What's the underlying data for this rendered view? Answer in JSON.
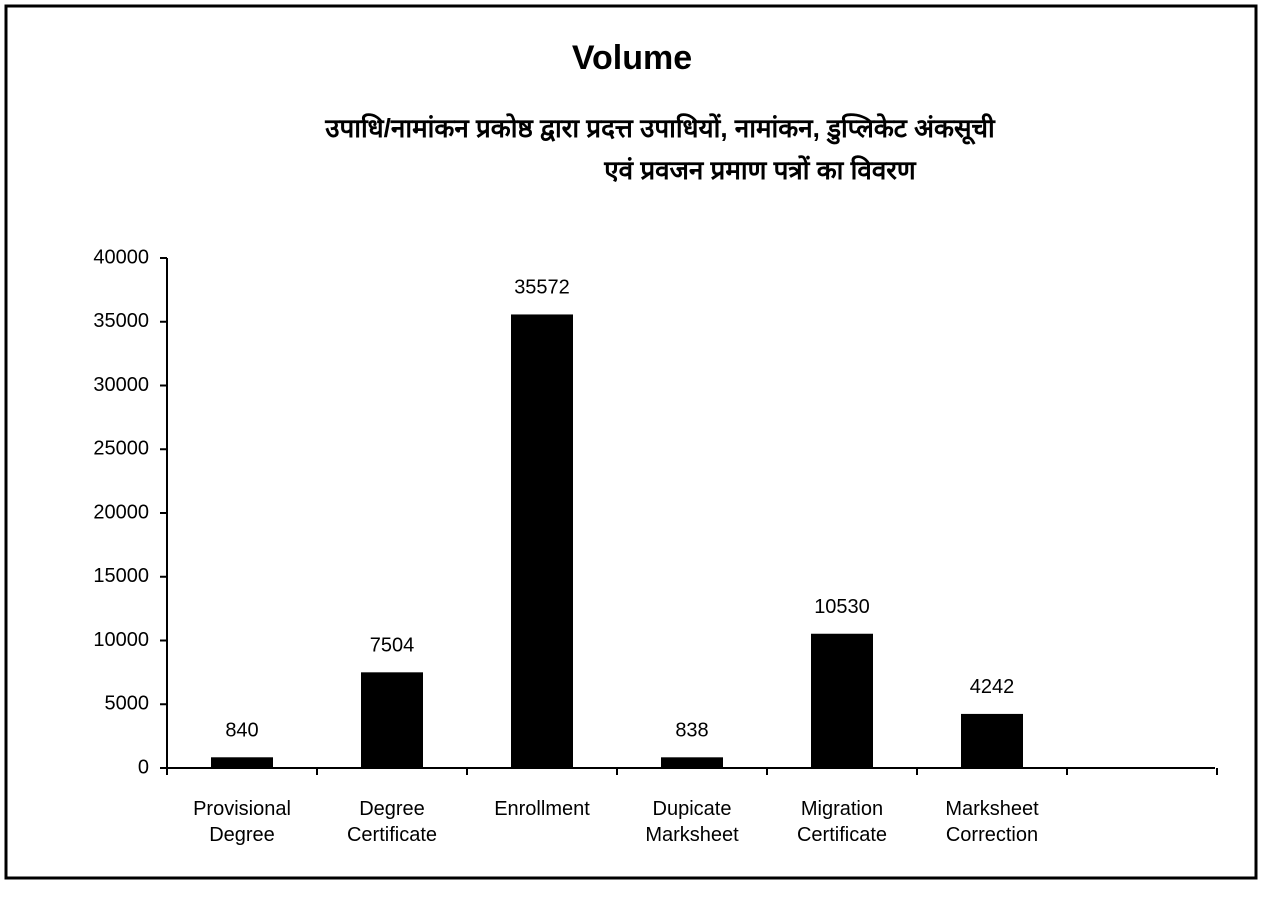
{
  "chart_data": {
    "type": "bar",
    "title": "Volume",
    "subtitle": [
      "उपाधि/नामांकन प्रकोष्ठ द्वारा प्रदत्त उपाधियों, नामांकन, डुप्लिकेट अंकसूची",
      "एवं प्रवजन प्रमाण पत्रों का विवरण"
    ],
    "categories": [
      "Provisional Degree",
      "Degree Certificate",
      "Enrollment",
      "Dupicate Marksheet",
      "Migration Certificate",
      "Marksheet Correction"
    ],
    "values": [
      840,
      7504,
      35572,
      838,
      10530,
      4242
    ],
    "color": "#000000",
    "ylim": [
      0,
      40000
    ],
    "yticks": [
      0,
      5000,
      10000,
      15000,
      20000,
      25000,
      30000,
      35000,
      40000
    ],
    "grid": false
  }
}
